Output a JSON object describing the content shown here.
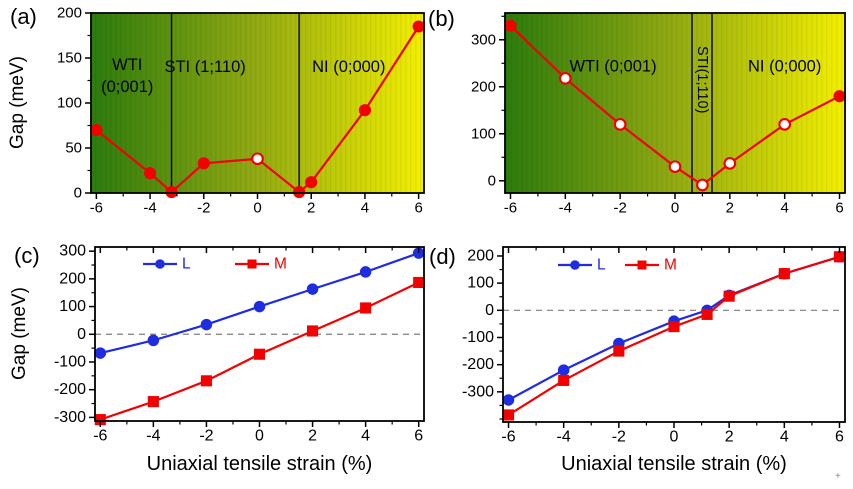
{
  "corner_mark": "+",
  "chart_data": [
    {
      "panel_label": "(a)",
      "type": "line",
      "ylabel": "Gap (meV)",
      "xlabel": "",
      "xlim": [
        -6.2,
        6.2
      ],
      "ylim": [
        0,
        200
      ],
      "xticks": [
        -6,
        -4,
        -2,
        0,
        2,
        4,
        6
      ],
      "yticks": [
        0,
        50,
        100,
        150,
        200
      ],
      "x_minor": 1,
      "y_minor": 25,
      "top_ticks": false,
      "zero_line": false,
      "grid": false,
      "phase_background": {
        "gradient": [
          "#2c7b0d",
          "#93aa12",
          "#f3ef00"
        ],
        "boundaries": [
          -3.2,
          1.55
        ],
        "labels": [
          {
            "lines": [
              "WTI",
              "(0;001)"
            ],
            "x": -4.85,
            "y": 142,
            "rotate": 0
          },
          {
            "lines": [
              "STI (1;110)"
            ],
            "x": -1.95,
            "y": 140,
            "rotate": 0
          },
          {
            "lines": [
              "NI (0;000)"
            ],
            "x": 3.4,
            "y": 140,
            "rotate": 0
          }
        ]
      },
      "series": [
        {
          "name": "gap",
          "color": "#f30000",
          "marker": "circle",
          "points": [
            {
              "x": -6,
              "y": 70,
              "open": false
            },
            {
              "x": -4,
              "y": 22,
              "open": false
            },
            {
              "x": -3.2,
              "y": 1,
              "open": false
            },
            {
              "x": -2,
              "y": 33,
              "open": false
            },
            {
              "x": 0,
              "y": 38,
              "open": true
            },
            {
              "x": 1.55,
              "y": 1,
              "open": false
            },
            {
              "x": 2,
              "y": 12,
              "open": false
            },
            {
              "x": 4,
              "y": 92,
              "open": false
            },
            {
              "x": 6,
              "y": 185,
              "open": false
            }
          ]
        }
      ]
    },
    {
      "panel_label": "(b)",
      "type": "line",
      "ylabel": "",
      "xlabel": "",
      "xlim": [
        -6.2,
        6.2
      ],
      "ylim": [
        -26,
        357
      ],
      "xticks": [
        -6,
        -4,
        -2,
        0,
        2,
        4,
        6
      ],
      "yticks": [
        0,
        100,
        200,
        300
      ],
      "x_minor": 1,
      "y_minor": 50,
      "top_ticks": false,
      "zero_line": false,
      "grid": false,
      "phase_background": {
        "gradient": [
          "#2c7b0d",
          "#93aa12",
          "#f3ef00"
        ],
        "boundaries": [
          0.62,
          1.35
        ],
        "labels": [
          {
            "lines": [
              "WTI (0;001)"
            ],
            "x": -2.26,
            "y": 243,
            "rotate": 0
          },
          {
            "lines": [
              "STI(1;110)"
            ],
            "x": 0.98,
            "y": 215,
            "rotate": 90
          },
          {
            "lines": [
              "NI (0;000)"
            ],
            "x": 4.0,
            "y": 243,
            "rotate": 0
          }
        ]
      },
      "series": [
        {
          "name": "gap",
          "color": "#f30000",
          "marker": "circle",
          "points": [
            {
              "x": -6,
              "y": 330,
              "open": false
            },
            {
              "x": -4,
              "y": 218,
              "open": true
            },
            {
              "x": -2,
              "y": 120,
              "open": true
            },
            {
              "x": 0,
              "y": 30,
              "open": true
            },
            {
              "x": 1.0,
              "y": -9,
              "open": true
            },
            {
              "x": 2,
              "y": 37,
              "open": true
            },
            {
              "x": 4,
              "y": 120,
              "open": true
            },
            {
              "x": 6,
              "y": 180,
              "open": false
            }
          ]
        }
      ]
    },
    {
      "panel_label": "(c)",
      "type": "line",
      "ylabel": "Gap (meV)",
      "xlabel": "Uniaxial tensile strain (%)",
      "xlim": [
        -6.2,
        6.2
      ],
      "ylim": [
        -313,
        315
      ],
      "xticks": [
        -6,
        -4,
        -2,
        0,
        2,
        4,
        6
      ],
      "yticks": [
        -300,
        -200,
        -100,
        0,
        100,
        200,
        300
      ],
      "x_minor": 1,
      "y_minor": 50,
      "top_ticks": true,
      "zero_line": true,
      "grid": false,
      "legend": {
        "x_offsets": [
          48,
          140
        ],
        "y_offset": 17
      },
      "series": [
        {
          "name": "L",
          "color": "#1f2ce0",
          "marker": "circle",
          "points": [
            {
              "x": -6,
              "y": -68,
              "open": false
            },
            {
              "x": -4,
              "y": -22,
              "open": false
            },
            {
              "x": -2,
              "y": 35,
              "open": false
            },
            {
              "x": 0,
              "y": 100,
              "open": false
            },
            {
              "x": 2,
              "y": 163,
              "open": false
            },
            {
              "x": 4,
              "y": 225,
              "open": false
            },
            {
              "x": 6,
              "y": 293,
              "open": false
            }
          ]
        },
        {
          "name": "M",
          "color": "#f30000",
          "marker": "square",
          "points": [
            {
              "x": -6,
              "y": -308,
              "open": false
            },
            {
              "x": -4,
              "y": -243,
              "open": false
            },
            {
              "x": -2,
              "y": -168,
              "open": false
            },
            {
              "x": 0,
              "y": -72,
              "open": false
            },
            {
              "x": 2,
              "y": 12,
              "open": false
            },
            {
              "x": 4,
              "y": 95,
              "open": false
            },
            {
              "x": 6,
              "y": 187,
              "open": false
            }
          ]
        }
      ]
    },
    {
      "panel_label": "(d)",
      "type": "line",
      "ylabel": "",
      "xlabel": "Uniaxial tensile strain (%)",
      "xlim": [
        -6.2,
        6.2
      ],
      "ylim": [
        -411,
        233
      ],
      "xticks": [
        -6,
        -4,
        -2,
        0,
        2,
        4,
        6
      ],
      "yticks": [
        -300,
        -200,
        -100,
        0,
        100,
        200
      ],
      "x_minor": 1,
      "y_minor": 50,
      "top_ticks": true,
      "zero_line": true,
      "grid": false,
      "legend": {
        "x_offsets": [
          55,
          122
        ],
        "y_offset": 18
      },
      "series": [
        {
          "name": "L",
          "color": "#1f2ce0",
          "marker": "circle",
          "points": [
            {
              "x": -6,
              "y": -330,
              "open": false
            },
            {
              "x": -4,
              "y": -220,
              "open": false
            },
            {
              "x": -2,
              "y": -122,
              "open": false
            },
            {
              "x": 0,
              "y": -40,
              "open": false
            },
            {
              "x": 1.2,
              "y": 0,
              "open": false
            },
            {
              "x": 2,
              "y": 55,
              "open": false
            },
            {
              "x": 4,
              "y": 135,
              "open": false
            },
            {
              "x": 6,
              "y": 197,
              "open": false
            }
          ]
        },
        {
          "name": "M",
          "color": "#f30000",
          "marker": "square",
          "points": [
            {
              "x": -6,
              "y": -385,
              "open": false
            },
            {
              "x": -4,
              "y": -258,
              "open": false
            },
            {
              "x": -2,
              "y": -150,
              "open": false
            },
            {
              "x": 0,
              "y": -60,
              "open": false
            },
            {
              "x": 1.2,
              "y": -15,
              "open": false
            },
            {
              "x": 2,
              "y": 52,
              "open": false
            },
            {
              "x": 4,
              "y": 135,
              "open": false
            },
            {
              "x": 6,
              "y": 197,
              "open": false
            }
          ]
        }
      ]
    }
  ]
}
